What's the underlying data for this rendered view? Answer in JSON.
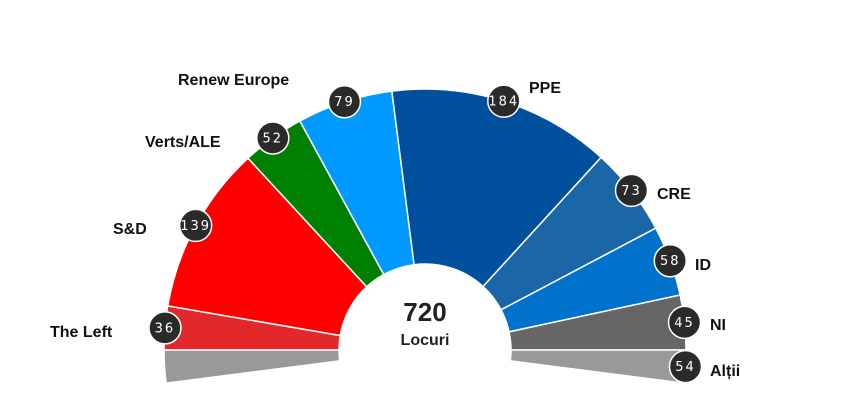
{
  "chart_data": {
    "type": "pie",
    "subtype": "hemicycle",
    "total": 720,
    "total_label": "Locuri",
    "parties": [
      {
        "name": "The Left",
        "seats": 36,
        "color": "#e3282b"
      },
      {
        "name": "S&D",
        "seats": 139,
        "color": "#ff0000"
      },
      {
        "name": "Verts/ALE",
        "seats": 52,
        "color": "#008000"
      },
      {
        "name": "Renew Europe",
        "seats": 79,
        "color": "#0099ff"
      },
      {
        "name": "PPE",
        "seats": 184,
        "color": "#00509e"
      },
      {
        "name": "CRE",
        "seats": 73,
        "color": "#1a66a6"
      },
      {
        "name": "ID",
        "seats": 58,
        "color": "#0072cc"
      },
      {
        "name": "NI",
        "seats": 45,
        "color": "#666666"
      },
      {
        "name": "Alții",
        "seats": 54,
        "color": "#999999"
      }
    ]
  }
}
